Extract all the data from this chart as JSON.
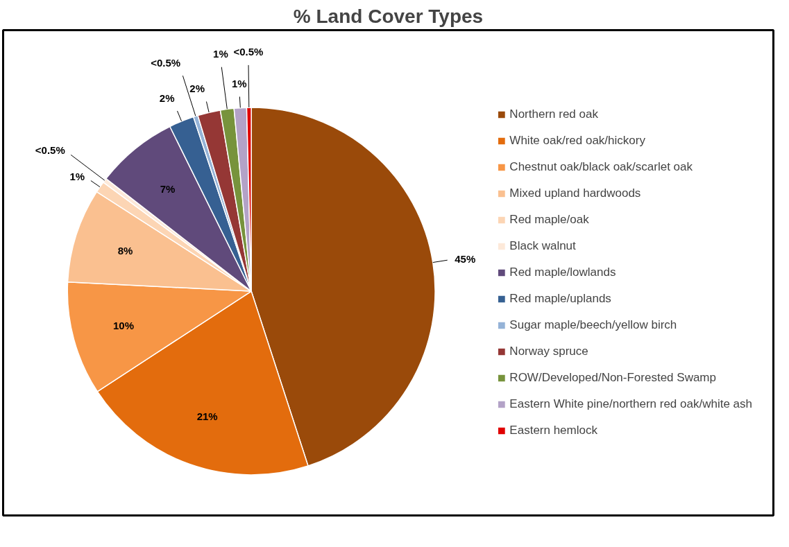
{
  "chart_data": {
    "type": "pie",
    "title": "% Land Cover Types",
    "categories": [
      "Northern red oak",
      "White oak/red oak/hickory",
      "Chestnut oak/black oak/scarlet oak",
      "Mixed upland hardwoods",
      "Red maple/oak",
      "Black walnut",
      "Red maple/lowlands",
      "Red maple/uplands",
      "Sugar maple/beech/yellow birch",
      "Norway spruce",
      "ROW/Developed/Non-Forested Swamp",
      "Eastern White pine/northern red oak/white ash",
      "Eastern hemlock"
    ],
    "values": [
      45.0,
      20.8,
      10.0,
      8.3,
      1.0,
      0.4,
      7.2,
      2.2,
      0.4,
      2.0,
      1.2,
      1.1,
      0.4
    ],
    "colors": [
      "#9a4a0a",
      "#e36c0d",
      "#f79646",
      "#fac090",
      "#fcd5b4",
      "#fde9d9",
      "#604a7b",
      "#366092",
      "#95b3d7",
      "#953735",
      "#77933c",
      "#b3a2c7",
      "#e00000"
    ],
    "value_labels": [
      "45%",
      "21%",
      "10%",
      "8%",
      "1%",
      "<0.5%",
      "7%",
      "2%",
      "<0.5%",
      "2%",
      "1%",
      "1%",
      "<0.5%"
    ],
    "legend": "right"
  }
}
